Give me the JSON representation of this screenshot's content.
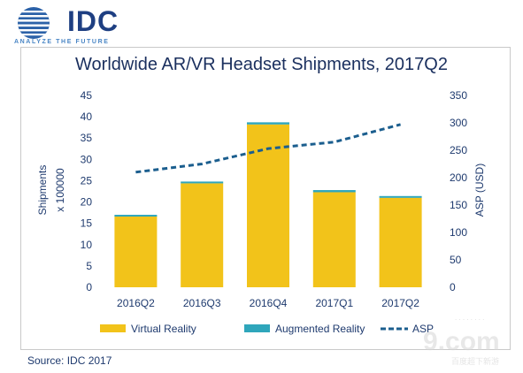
{
  "logo": {
    "word": "IDC",
    "tagline": "ANALYZE THE FUTURE"
  },
  "source": "Source: IDC 2017",
  "watermark": {
    "main": "9.com",
    "sub": "百度超下新游"
  },
  "colors": {
    "vr": "#f2c31a",
    "ar": "#2fa6bb",
    "asp": "#1b5e8e",
    "axis_text": "#1e3a6e"
  },
  "chart_data": {
    "type": "bar",
    "title": "Worldwide AR/VR Headset Shipments, 2017Q2",
    "categories": [
      "2016Q2",
      "2016Q3",
      "2016Q4",
      "2017Q1",
      "2017Q2"
    ],
    "series": [
      {
        "name": "Virtual Reality",
        "kind": "bar",
        "stack": "shipments",
        "axis": "left",
        "values": [
          16.7,
          24.4,
          38.2,
          22.3,
          21.0
        ]
      },
      {
        "name": "Augmented Reality",
        "kind": "bar",
        "stack": "shipments",
        "axis": "left",
        "values": [
          0.3,
          0.4,
          0.5,
          0.5,
          0.4
        ]
      },
      {
        "name": "ASP",
        "kind": "line",
        "style": "dashed",
        "axis": "right",
        "values": [
          210,
          225,
          253,
          265,
          297
        ]
      }
    ],
    "ylabel": [
      "Shipments",
      "x 100000"
    ],
    "ylabel_right": "ASP (USD)",
    "ylim": [
      0,
      45
    ],
    "yticks": [
      "0",
      "5",
      "10",
      "15",
      "20",
      "25",
      "30",
      "35",
      "40",
      "45"
    ],
    "ylim_right": [
      0,
      350
    ],
    "yticks_right": [
      "0",
      "50",
      "100",
      "150",
      "200",
      "250",
      "300",
      "350"
    ],
    "grid": false,
    "legend_position": "bottom"
  }
}
